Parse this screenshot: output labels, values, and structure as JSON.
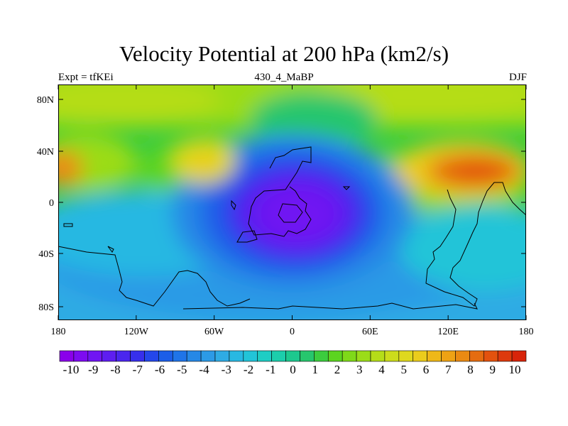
{
  "title": "Velocity Potential at 200 hPa (km2/s)",
  "subtitle_left": "Expt = tfKEi",
  "subtitle_center": "430_4_MaBP",
  "subtitle_right": "DJF",
  "lat_ticks": [
    "80N",
    "40N",
    "0",
    "40S",
    "80S"
  ],
  "lon_ticks": [
    "180",
    "120W",
    "60W",
    "0",
    "60E",
    "120E",
    "180"
  ],
  "colorbar": {
    "labels": [
      "-10",
      "-9",
      "-8",
      "-7",
      "-6",
      "-5",
      "-4",
      "-3",
      "-2",
      "-1",
      "0",
      "1",
      "2",
      "3",
      "4",
      "5",
      "6",
      "7",
      "8",
      "9",
      "10"
    ],
    "colors": [
      "#8a00ea",
      "#7d0bf0",
      "#7015f2",
      "#5e1ef0",
      "#4a26ee",
      "#372fec",
      "#2447ea",
      "#1c5ee8",
      "#1f74e8",
      "#2688e6",
      "#2c9ae6",
      "#2fabe4",
      "#28b8e2",
      "#22c4d8",
      "#1ecdc4",
      "#1ccdab",
      "#1dc88e",
      "#27c66d",
      "#3ccc3e",
      "#5cd420",
      "#7fd919",
      "#9bdc19",
      "#b5dd19",
      "#ccdc1c",
      "#dfd81e",
      "#ebcc1c",
      "#efb818",
      "#eea214",
      "#ea8a12",
      "#e56c10",
      "#e3520e",
      "#dd3a0d",
      "#d8240a"
    ]
  }
}
